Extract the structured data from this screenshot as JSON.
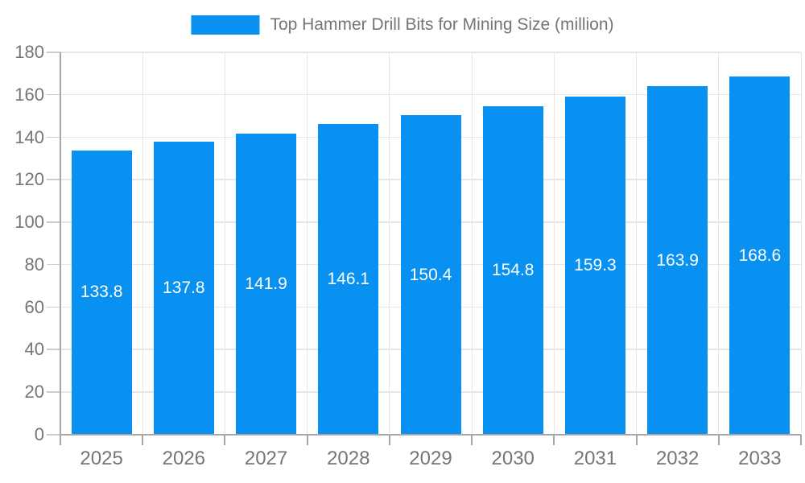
{
  "chart_data": {
    "type": "bar",
    "title": "Top Hammer Drill Bits for Mining Size (million)",
    "categories": [
      "2025",
      "2026",
      "2027",
      "2028",
      "2029",
      "2030",
      "2031",
      "2032",
      "2033"
    ],
    "values": [
      133.8,
      137.8,
      141.9,
      146.1,
      150.4,
      154.8,
      159.3,
      163.9,
      168.6
    ],
    "value_labels": [
      "133.8",
      "137.8",
      "141.9",
      "146.1",
      "150.4",
      "154.8",
      "159.3",
      "163.9",
      "168.6"
    ],
    "xlabel": "",
    "ylabel": "",
    "ylim": [
      0,
      180
    ],
    "ytick_step": 20,
    "yticks": [
      0,
      20,
      40,
      60,
      80,
      100,
      120,
      140,
      160,
      180
    ],
    "grid": true,
    "legend_position": "top",
    "bar_color": "#0991F2",
    "value_label_color": "#ffffff",
    "axis_label_color": "#757575",
    "grid_color": "#e6e6e6",
    "axis_line_color": "#a6a6a6",
    "y_tick_color": "#cccccc",
    "x_tick_color": "#a6a6a6",
    "background_color": "#ffffff"
  }
}
